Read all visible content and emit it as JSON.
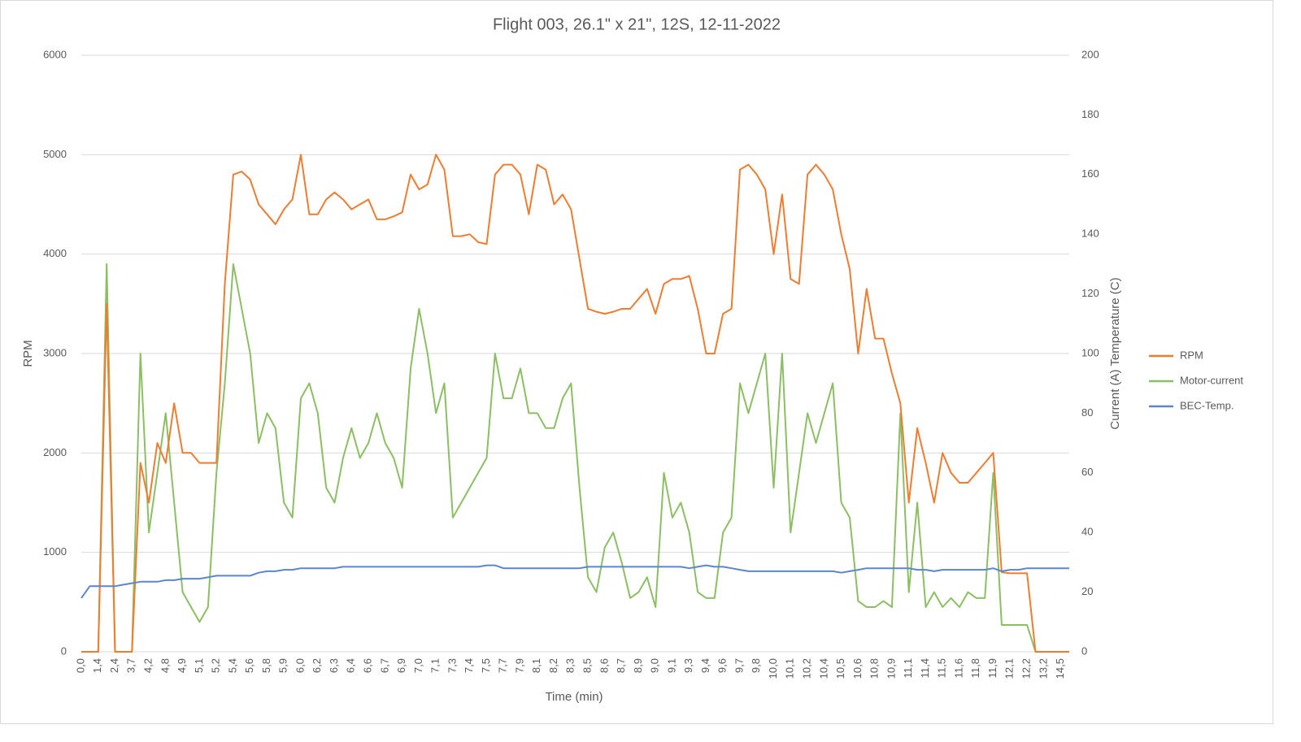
{
  "chart_data": {
    "type": "line",
    "title": "Flight 003, 26.1\" x 21\", 12S, 12-11-2022",
    "x_label": "Time (min)",
    "y_label": "RPM",
    "y2_label": "Current (A) Temperature (C)",
    "categories": [
      "0,0",
      null,
      "1,4",
      null,
      "2,4",
      null,
      "3,7",
      null,
      "4,2",
      null,
      "4,8",
      null,
      "4,9",
      null,
      "5,1",
      null,
      "5,2",
      null,
      "5,4",
      null,
      "5,6",
      null,
      "5,8",
      null,
      "5,9",
      null,
      "6,0",
      null,
      "6,2",
      null,
      "6,3",
      null,
      "6,4",
      null,
      "6,6",
      null,
      "6,7",
      null,
      "6,9",
      null,
      "7,0",
      null,
      "7,1",
      null,
      "7,3",
      null,
      "7,4",
      null,
      "7,5",
      null,
      "7,7",
      null,
      "7,9",
      null,
      "8,1",
      null,
      "8,2",
      null,
      "8,3",
      null,
      "8,5",
      null,
      "8,6",
      null,
      "8,7",
      null,
      "8,9",
      null,
      "9,0",
      null,
      "9,1",
      null,
      "9,3",
      null,
      "9,4",
      null,
      "9,6",
      null,
      "9,7",
      null,
      "9,8",
      null,
      "10,0",
      null,
      "10,1",
      null,
      "10,2",
      null,
      "10,4",
      null,
      "10,5",
      null,
      "10,6",
      null,
      "10,8",
      null,
      "10,9",
      null,
      "11,1",
      null,
      "11,4",
      null,
      "11,5",
      null,
      "11,6",
      null,
      "11,8",
      null,
      "11,9",
      null,
      "12,1",
      null,
      "12,2",
      null,
      "13,2",
      null,
      "14,5",
      null
    ],
    "series": [
      {
        "name": "RPM",
        "color": "#ed7d31",
        "values": [
          0,
          0,
          0,
          3500,
          0,
          0,
          0,
          1900,
          1500,
          2100,
          1900,
          2500,
          2000,
          2000,
          1900,
          1900,
          1900,
          3700,
          4800,
          4830,
          4750,
          4500,
          4400,
          4300,
          4450,
          4550,
          5000,
          4400,
          4400,
          4550,
          4620,
          4550,
          4450,
          4500,
          4550,
          4350,
          4350,
          4380,
          4420,
          4800,
          4650,
          4700,
          5000,
          4850,
          4180,
          4180,
          4200,
          4120,
          4100,
          4800,
          4900,
          4900,
          4800,
          4400,
          4900,
          4850,
          4500,
          4600,
          4450,
          3950,
          3450,
          3420,
          3400,
          3420,
          3450,
          3450,
          3550,
          3650,
          3400,
          3700,
          3750,
          3750,
          3780,
          3450,
          3000,
          3000,
          3400,
          3450,
          4850,
          4900,
          4800,
          4650,
          4000,
          4600,
          3750,
          3700,
          4800,
          4900,
          4800,
          4650,
          4200,
          3850,
          3000,
          3650,
          3150,
          3150,
          2800,
          2500,
          1500,
          2250,
          1900,
          1500,
          2000,
          1800,
          1700,
          1700,
          1800,
          1900,
          2000,
          800,
          790,
          790,
          790,
          0,
          0,
          0,
          0,
          0
        ]
      },
      {
        "name": "Motor-current",
        "color": "#8cbf64",
        "axis": "y2",
        "values": [
          0,
          0,
          0,
          130,
          0,
          0,
          0,
          100,
          40,
          60,
          80,
          50,
          20,
          15,
          10,
          15,
          60,
          90,
          130,
          115,
          100,
          70,
          80,
          75,
          50,
          45,
          85,
          90,
          80,
          55,
          50,
          65,
          75,
          65,
          70,
          80,
          70,
          65,
          55,
          95,
          115,
          100,
          80,
          90,
          45,
          50,
          55,
          60,
          65,
          100,
          85,
          85,
          95,
          80,
          80,
          75,
          75,
          85,
          90,
          55,
          25,
          20,
          35,
          40,
          30,
          18,
          20,
          25,
          15,
          60,
          45,
          50,
          40,
          20,
          18,
          18,
          40,
          45,
          90,
          80,
          90,
          100,
          55,
          100,
          40,
          60,
          80,
          70,
          80,
          90,
          50,
          45,
          17,
          15,
          15,
          17,
          15,
          80,
          20,
          50,
          15,
          20,
          15,
          18,
          15,
          20,
          18,
          18,
          60,
          9,
          9,
          9,
          9,
          0,
          0,
          0,
          0,
          0
        ]
      },
      {
        "name": "BEC-Temp.",
        "color": "#5a86d0",
        "axis": "y2",
        "values": [
          18,
          22,
          22,
          22,
          22,
          22.5,
          23,
          23.5,
          23.5,
          23.5,
          24,
          24,
          24.5,
          24.5,
          24.5,
          25,
          25.5,
          25.5,
          25.5,
          25.5,
          25.5,
          26.5,
          27,
          27,
          27.5,
          27.5,
          28,
          28,
          28,
          28,
          28,
          28.5,
          28.5,
          28.5,
          28.5,
          28.5,
          28.5,
          28.5,
          28.5,
          28.5,
          28.5,
          28.5,
          28.5,
          28.5,
          28.5,
          28.5,
          28.5,
          28.5,
          29,
          29,
          28,
          28,
          28,
          28,
          28,
          28,
          28,
          28,
          28,
          28,
          28.5,
          28.5,
          28.5,
          28.5,
          28.5,
          28.5,
          28.5,
          28.5,
          28.5,
          28.5,
          28.5,
          28.5,
          28,
          28.5,
          29,
          28.5,
          28.5,
          28,
          27.5,
          27,
          27,
          27,
          27,
          27,
          27,
          27,
          27,
          27,
          27,
          27,
          26.5,
          27,
          27.5,
          28,
          28,
          28,
          28,
          28,
          28,
          27.5,
          27.5,
          27,
          27.5,
          27.5,
          27.5,
          27.5,
          27.5,
          27.5,
          28,
          27,
          27.5,
          27.5,
          28,
          28,
          28,
          28,
          28,
          28
        ]
      }
    ],
    "ylim": [
      0,
      6000
    ],
    "yticks": [
      0,
      1000,
      2000,
      3000,
      4000,
      5000,
      6000
    ],
    "y2lim": [
      0,
      200
    ],
    "y2ticks": [
      0,
      20,
      40,
      60,
      80,
      100,
      120,
      140,
      160,
      180,
      200
    ],
    "grid": true,
    "legend": "right"
  }
}
